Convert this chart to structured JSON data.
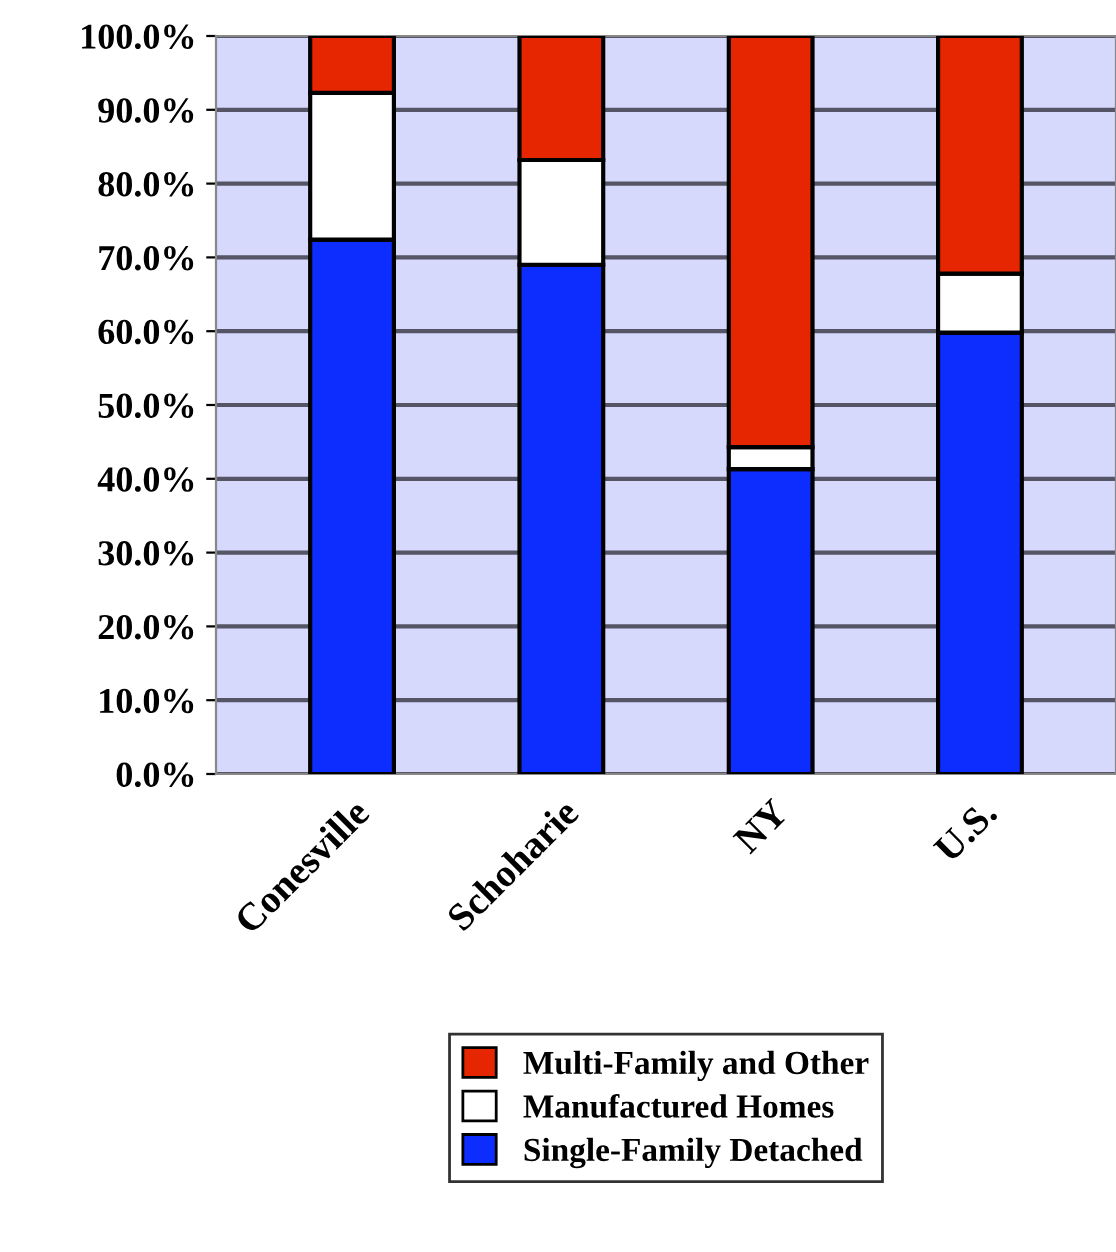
{
  "chart_data": {
    "type": "bar",
    "stacked": true,
    "categories": [
      "Conesville",
      "Schoharie",
      "NY",
      "U.S."
    ],
    "series": [
      {
        "name": "Single-Family Detached",
        "color": "#0d2dff",
        "values": [
          72.4,
          69.0,
          41.3,
          59.8
        ]
      },
      {
        "name": "Manufactured Homes",
        "color": "#ffffff",
        "values": [
          19.9,
          14.2,
          3.0,
          8.0
        ]
      },
      {
        "name": "Multi-Family and Other",
        "color": "#e52600",
        "values": [
          7.7,
          16.8,
          55.7,
          32.2
        ]
      }
    ],
    "ylim": [
      0,
      100
    ],
    "yticks": [
      {
        "value": 0,
        "label": "0.0%"
      },
      {
        "value": 10,
        "label": "10.0%"
      },
      {
        "value": 20,
        "label": "20.0%"
      },
      {
        "value": 30,
        "label": "30.0%"
      },
      {
        "value": 40,
        "label": "40.0%"
      },
      {
        "value": 50,
        "label": "50.0%"
      },
      {
        "value": 60,
        "label": "60.0%"
      },
      {
        "value": 70,
        "label": "70.0%"
      },
      {
        "value": 80,
        "label": "80.0%"
      },
      {
        "value": 90,
        "label": "90.0%"
      },
      {
        "value": 100,
        "label": "100.0%"
      }
    ],
    "grid": "y",
    "legend": "bottom"
  }
}
